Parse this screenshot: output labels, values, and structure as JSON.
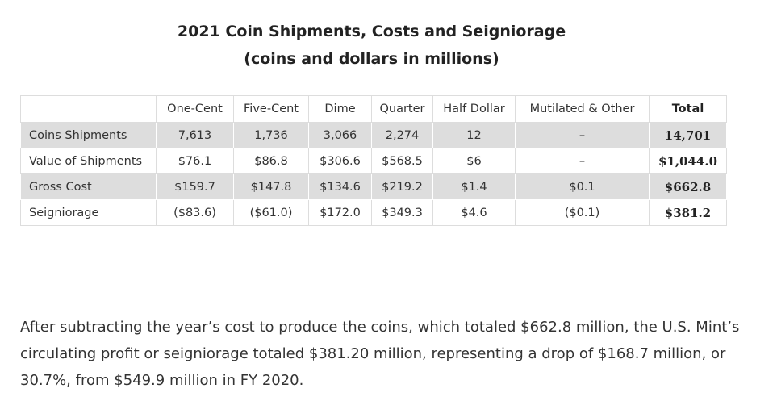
{
  "title": {
    "line1": "2021 Coin Shipments, Costs and Seigniorage",
    "line2": "(coins and dollars in millions)"
  },
  "table": {
    "headers": [
      "",
      "One-Cent",
      "Five-Cent",
      "Dime",
      "Quarter",
      "Half Dollar",
      "Mutilated & Other",
      "Total"
    ],
    "rows": [
      {
        "label": "Coins Shipments",
        "cells": [
          "7,613",
          "1,736",
          "3,066",
          "2,274",
          "12",
          "–",
          "14,701"
        ]
      },
      {
        "label": "Value of Shipments",
        "cells": [
          "$76.1",
          "$86.8",
          "$306.6",
          "$568.5",
          "$6",
          "–",
          "$1,044.0"
        ]
      },
      {
        "label": "Gross Cost",
        "cells": [
          "$159.7",
          "$147.8",
          "$134.6",
          "$219.2",
          "$1.4",
          "$0.1",
          "$662.8"
        ]
      },
      {
        "label": "Seigniorage",
        "cells": [
          "($83.6)",
          "($61.0)",
          "$172.0",
          "$349.3",
          "$4.6",
          "($0.1)",
          "$381.2"
        ]
      }
    ]
  },
  "paragraph": "After subtracting the year’s cost to produce the coins, which totaled $662.8 million, the U.S. Mint’s circulating profit or seigniorage totaled $381.20 million, representing a drop of $168.7 million, or 30.7%, from $549.9 million in FY 2020."
}
